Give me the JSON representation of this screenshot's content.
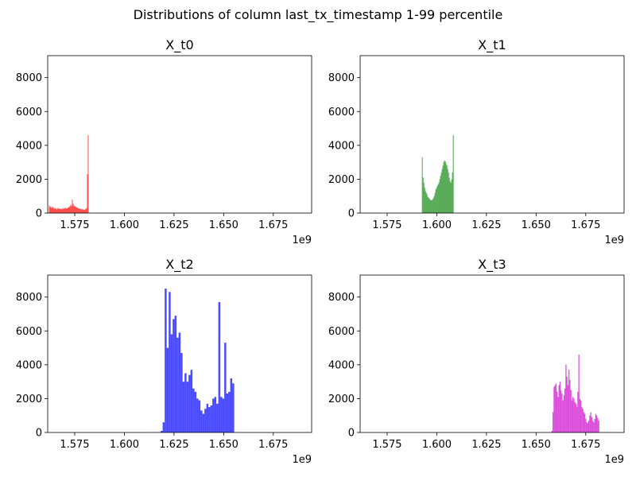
{
  "suptitle": "Distributions of column last_tx_timestamp 1-99 percentile",
  "chart_data": [
    {
      "type": "bar",
      "title": "X_t0",
      "color": "#ff0000",
      "xlim": [
        1.5614,
        1.6943
      ],
      "ylim": [
        0,
        9300
      ],
      "x_ticks": [
        "1.575",
        "1.600",
        "1.625",
        "1.650",
        "1.675"
      ],
      "y_ticks": [
        "0",
        "2000",
        "4000",
        "6000",
        "8000"
      ],
      "x_offset_label": "1e9",
      "bins": {
        "edges_start": 1.562,
        "bin_width": 0.0004,
        "values": [
          450,
          350,
          400,
          300,
          380,
          320,
          250,
          300,
          280,
          220,
          260,
          300,
          240,
          280,
          230,
          260,
          220,
          300,
          250,
          280,
          320,
          260,
          290,
          300,
          330,
          360,
          400,
          500,
          420,
          800,
          550,
          450,
          400,
          380,
          350,
          330,
          300,
          280,
          260,
          250,
          240,
          220,
          230,
          200,
          210,
          200,
          250,
          300,
          2300,
          4600
        ]
      }
    },
    {
      "type": "bar",
      "title": "X_t1",
      "color": "#008000",
      "xlim": [
        1.5614,
        1.6943
      ],
      "ylim": [
        0,
        9300
      ],
      "x_ticks": [
        "1.575",
        "1.600",
        "1.625",
        "1.650",
        "1.675"
      ],
      "y_ticks": [
        "0",
        "2000",
        "4000",
        "6000",
        "8000"
      ],
      "x_offset_label": "1e9",
      "bins": {
        "edges_start": 1.5925,
        "bin_width": 0.0004,
        "values": [
          3300,
          2100,
          1800,
          1500,
          1300,
          1200,
          1100,
          950,
          900,
          850,
          800,
          750,
          760,
          800,
          900,
          1000,
          1200,
          1400,
          1500,
          1600,
          1700,
          1800,
          2000,
          2200,
          2400,
          2600,
          2800,
          3000,
          3100,
          3050,
          2900,
          2800,
          2600,
          2400,
          2100,
          1900,
          1800,
          2000,
          2400,
          4600
        ]
      }
    },
    {
      "type": "bar",
      "title": "X_t2",
      "color": "#0000ff",
      "xlim": [
        1.5614,
        1.6943
      ],
      "ylim": [
        0,
        9300
      ],
      "x_ticks": [
        "1.575",
        "1.600",
        "1.625",
        "1.650",
        "1.675"
      ],
      "y_ticks": [
        "0",
        "2000",
        "4000",
        "6000",
        "8000"
      ],
      "x_offset_label": "1e9",
      "bins": {
        "edges_start": 1.6183,
        "bin_width": 0.001,
        "values": [
          100,
          600,
          8500,
          5000,
          8300,
          5800,
          6700,
          6900,
          5600,
          5900,
          4700,
          3000,
          3500,
          3000,
          3400,
          3700,
          2600,
          2400,
          2000,
          1900,
          1300,
          1100,
          1400,
          1700,
          1500,
          1600,
          2000,
          2100,
          1700,
          7700,
          2100,
          2000,
          5300,
          2300,
          2400,
          3200,
          2900
        ]
      }
    },
    {
      "type": "bar",
      "title": "X_t3",
      "color": "#cc00cc",
      "xlim": [
        1.5614,
        1.6943
      ],
      "ylim": [
        0,
        9300
      ],
      "x_ticks": [
        "1.575",
        "1.600",
        "1.625",
        "1.650",
        "1.675"
      ],
      "y_ticks": [
        "0",
        "2000",
        "4000",
        "6000",
        "8000"
      ],
      "x_offset_label": "1e9",
      "bins": {
        "edges_start": 1.6578,
        "bin_width": 0.0005,
        "values": [
          100,
          1200,
          2700,
          2800,
          2900,
          2400,
          2100,
          2800,
          3000,
          2500,
          2300,
          1900,
          2200,
          2600,
          4000,
          3300,
          2800,
          3700,
          3100,
          2500,
          1900,
          2100,
          2000,
          1800,
          1700,
          1500,
          2400,
          4600,
          2000,
          1900,
          1500,
          1400,
          1200,
          1100,
          800,
          600,
          550,
          700,
          1000,
          1200,
          900,
          700,
          600,
          800,
          1100,
          1000,
          850,
          700
        ]
      }
    }
  ]
}
